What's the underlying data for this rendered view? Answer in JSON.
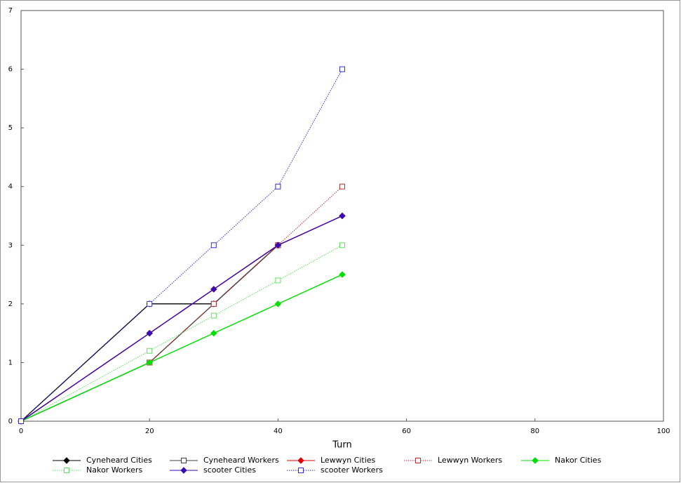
{
  "chart_data": {
    "type": "line",
    "x_label": "Turn",
    "x": [
      0,
      20,
      30,
      40,
      50
    ],
    "xlim": [
      0,
      100
    ],
    "xticks": [
      0,
      20,
      40,
      60,
      80,
      100
    ],
    "ylim": [
      0,
      7
    ],
    "yticks": [
      0,
      1,
      2,
      3,
      4,
      5,
      6,
      7
    ],
    "series": [
      {
        "name": "Cyneheard Cities",
        "color": "#000000",
        "marker": "diamond",
        "dashed": false,
        "values": [
          0,
          2,
          2,
          3,
          null
        ]
      },
      {
        "name": "Cyneheard Workers",
        "color": "#404040",
        "marker": "square",
        "dashed": false,
        "values": [
          0,
          1,
          2,
          3,
          null
        ]
      },
      {
        "name": "Lewwyn Cities",
        "color": "#e00000",
        "marker": "diamond",
        "dashed": false,
        "values": [
          0,
          1.5,
          2.25,
          3,
          3.5
        ]
      },
      {
        "name": "Lewwyn Workers",
        "color": "#c03030",
        "marker": "square",
        "dashed": true,
        "values": [
          0,
          1,
          2,
          3,
          4
        ]
      },
      {
        "name": "Nakor Cities",
        "color": "#00e000",
        "marker": "diamond",
        "dashed": false,
        "values": [
          0,
          1,
          1.5,
          2,
          2.5
        ]
      },
      {
        "name": "Nakor Workers",
        "color": "#60e060",
        "marker": "square",
        "dashed": true,
        "values": [
          0,
          1.2,
          1.8,
          2.4,
          3
        ]
      },
      {
        "name": "scooter Cities",
        "color": "#3a0ab0",
        "marker": "diamond",
        "dashed": false,
        "values": [
          0,
          1.5,
          2.25,
          3,
          3.5
        ]
      },
      {
        "name": "scooter Workers",
        "color": "#3030d0",
        "marker": "square",
        "dashed": true,
        "values": [
          0,
          2,
          3,
          4,
          6
        ]
      }
    ]
  }
}
